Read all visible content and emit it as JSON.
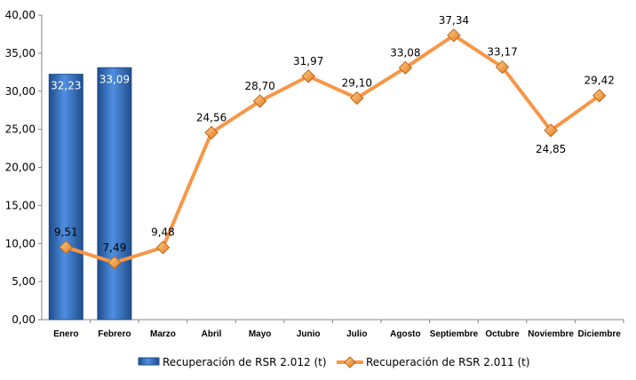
{
  "chart_data": {
    "type": "bar",
    "categories": [
      "Enero",
      "Febrero",
      "Marzo",
      "Abril",
      "Mayo",
      "Junio",
      "Julio",
      "Agosto",
      "Septiembre",
      "Octubre",
      "Noviembre",
      "Diciembre"
    ],
    "ylim": [
      0,
      40
    ],
    "y_ticks": [
      "0,00",
      "5,00",
      "10,00",
      "15,00",
      "20,00",
      "25,00",
      "30,00",
      "35,00",
      "40,00"
    ],
    "grid": false,
    "legend_position": "bottom",
    "series": [
      {
        "name": "Recuperación de RSR 2.012 (t)",
        "type": "bar",
        "color": "#2e6bbf",
        "values": [
          32.23,
          33.09,
          null,
          null,
          null,
          null,
          null,
          null,
          null,
          null,
          null,
          null
        ],
        "labels": [
          "32,23",
          "33,09"
        ]
      },
      {
        "name": "Recuperación de RSR 2.011 (t)",
        "type": "line",
        "color": "#f79646",
        "values": [
          9.51,
          7.49,
          9.48,
          24.56,
          28.7,
          31.97,
          29.1,
          33.08,
          37.34,
          33.17,
          24.85,
          29.42
        ],
        "labels": [
          "9,51",
          "7,49",
          "9,48",
          "24,56",
          "28,70",
          "31,97",
          "29,10",
          "33,08",
          "37,34",
          "33,17",
          "24,85",
          "29,42"
        ]
      }
    ]
  }
}
